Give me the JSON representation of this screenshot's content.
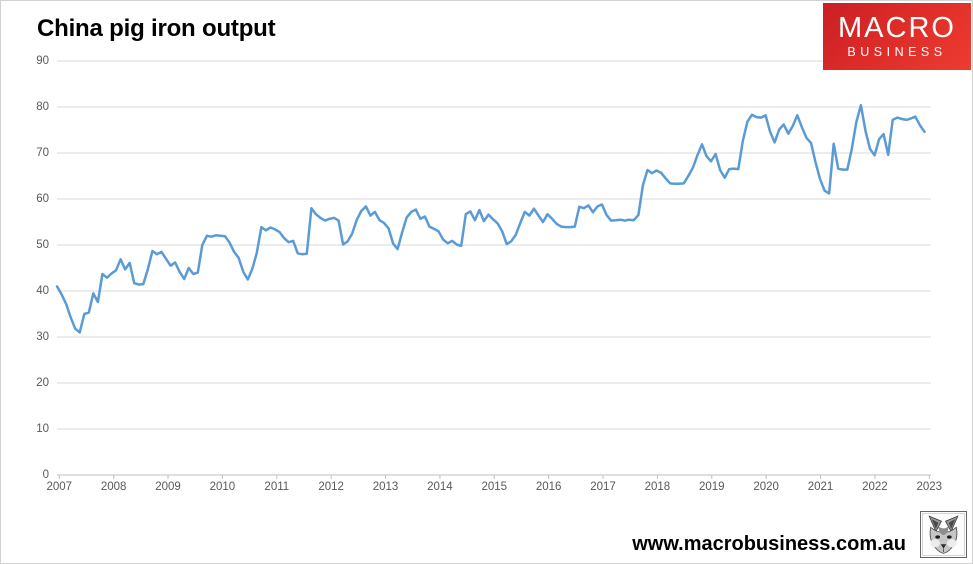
{
  "title": "China pig iron output",
  "logo": {
    "line1": "MACRO",
    "line2": "BUSINESS",
    "bg_color": "#dd2c28"
  },
  "footer": {
    "url": "www.macrobusiness.com.au",
    "logo": "fox-sketch-logo"
  },
  "colors": {
    "line": "#5B9BD5",
    "grid": "#d9d9d9",
    "axis": "#bfbfbf",
    "tick_label": "#595959",
    "title": "#000000",
    "logo_red": "#dd2c28"
  },
  "chart_data": {
    "type": "line",
    "title": "China pig iron output",
    "xlabel": "",
    "ylabel": "",
    "legend": "none",
    "grid": "horizontal",
    "ylim": [
      0,
      90
    ],
    "y_ticks": [
      0,
      10,
      20,
      30,
      40,
      50,
      60,
      70,
      80,
      90
    ],
    "x_tick_labels": [
      "2007",
      "2008",
      "2009",
      "2010",
      "2011",
      "2012",
      "2013",
      "2014",
      "2015",
      "2016",
      "2017",
      "2018",
      "2019",
      "2020",
      "2021",
      "2022",
      "2023"
    ],
    "x_frequency": "monthly",
    "x_start": "2007-01",
    "x_end": "2022-12",
    "series": [
      {
        "name": "China pig iron output",
        "color": "#5B9BD5",
        "values": [
          41.0,
          39.3,
          37.2,
          34.3,
          31.8,
          31.0,
          35.0,
          35.3,
          39.5,
          37.6,
          43.7,
          42.9,
          43.8,
          44.5,
          46.9,
          44.7,
          46.1,
          41.7,
          41.4,
          41.5,
          44.7,
          48.7,
          48.0,
          48.5,
          47.0,
          45.5,
          46.2,
          44.2,
          42.6,
          45.0,
          43.7,
          44.0,
          50.0,
          52.0,
          51.8,
          52.1,
          52.0,
          51.9,
          50.5,
          48.5,
          47.2,
          44.2,
          42.5,
          44.8,
          48.3,
          53.9,
          53.2,
          53.8,
          53.4,
          52.8,
          51.5,
          50.6,
          50.9,
          48.2,
          48.0,
          48.1,
          58.0,
          56.7,
          55.9,
          55.3,
          55.7,
          55.9,
          55.3,
          50.1,
          50.8,
          52.5,
          55.5,
          57.4,
          58.4,
          56.4,
          57.2,
          55.4,
          54.8,
          53.6,
          50.3,
          49.1,
          52.8,
          56.0,
          57.2,
          57.7,
          55.7,
          56.2,
          54.0,
          53.5,
          53.0,
          51.2,
          50.4,
          50.9,
          50.1,
          49.8,
          56.7,
          57.3,
          55.4,
          57.6,
          55.2,
          56.6,
          55.6,
          54.7,
          53.0,
          50.2,
          50.8,
          52.2,
          54.8,
          57.2,
          56.4,
          57.9,
          56.4,
          55.0,
          56.7,
          55.7,
          54.6,
          54.0,
          53.9,
          53.9,
          54.0,
          58.3,
          58.0,
          58.6,
          57.1,
          58.4,
          58.8,
          56.5,
          55.3,
          55.4,
          55.5,
          55.3,
          55.5,
          55.4,
          56.5,
          63.0,
          66.3,
          65.6,
          66.2,
          65.7,
          64.5,
          63.4,
          63.3,
          63.3,
          63.4,
          65.0,
          66.8,
          69.5,
          71.9,
          69.3,
          68.2,
          69.8,
          66.3,
          64.6,
          66.5,
          66.6,
          66.5,
          72.6,
          76.8,
          78.3,
          77.8,
          77.7,
          78.2,
          74.6,
          72.3,
          75.1,
          76.2,
          74.2,
          75.9,
          78.2,
          75.6,
          73.3,
          72.2,
          68.0,
          64.3,
          61.8,
          61.2,
          72.0,
          66.6,
          66.4,
          66.4,
          71.0,
          76.8,
          80.4,
          74.8,
          70.9,
          69.5,
          73.0,
          74.1,
          69.6,
          77.2,
          77.7,
          77.4,
          77.2,
          77.5,
          77.9,
          76.0,
          74.6
        ]
      }
    ]
  }
}
